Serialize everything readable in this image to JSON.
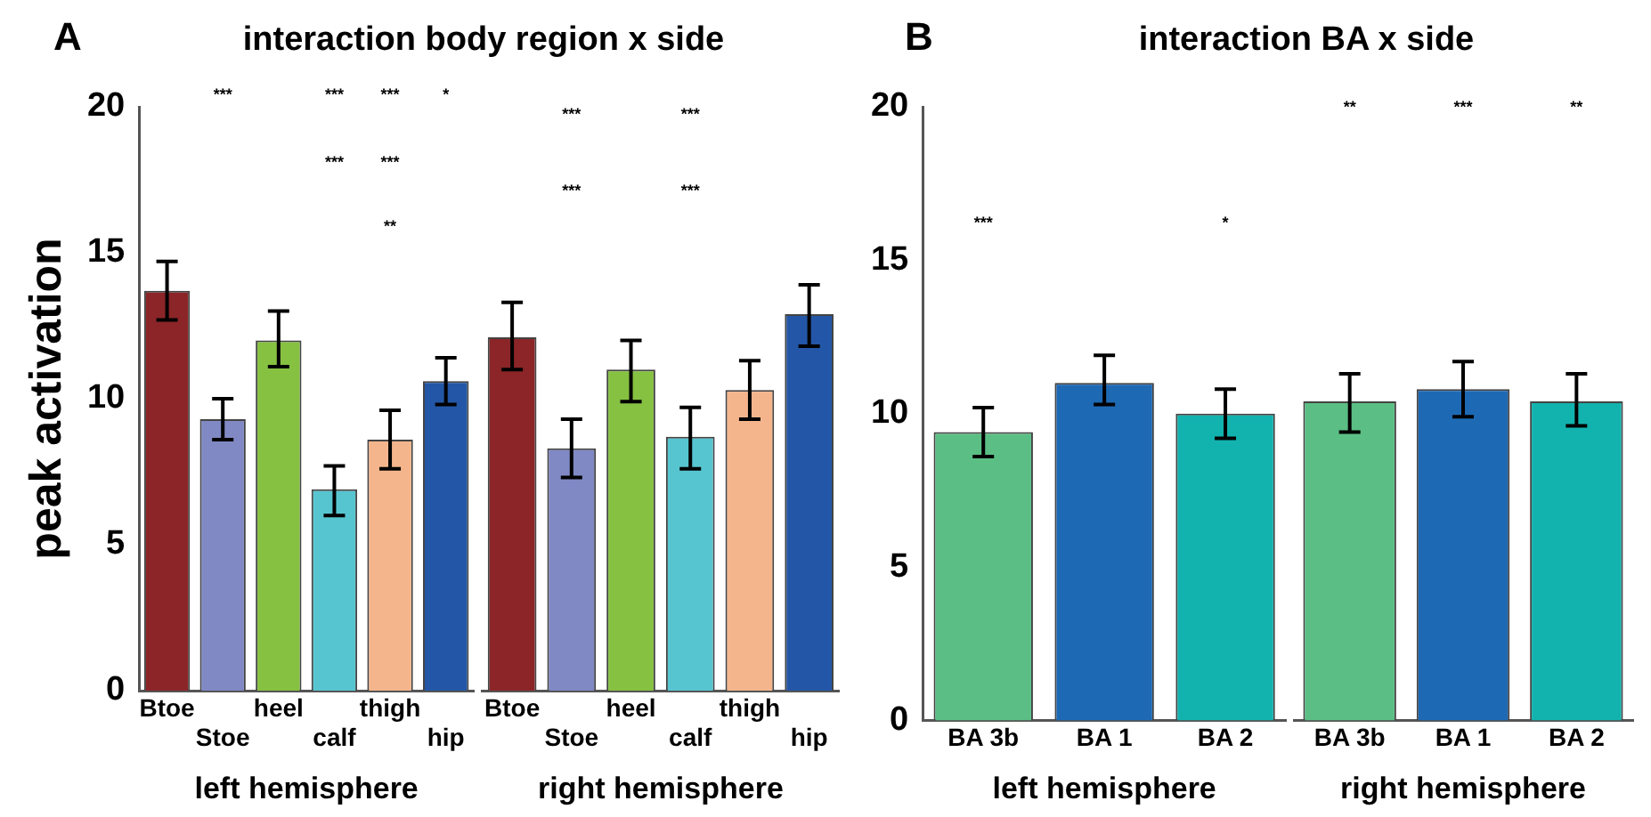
{
  "chart_data": [
    {
      "type": "bar",
      "title": "interaction body region x side",
      "ylabel": "peak activation",
      "xlabel": "left hemisphere",
      "categories": [
        "Btoe",
        "Stoe",
        "heel",
        "calf",
        "thigh",
        "hip"
      ],
      "values": [
        13.7,
        9.3,
        12.0,
        6.9,
        8.6,
        10.6
      ],
      "colors": [
        "#8b2527",
        "#8089c4",
        "#86c141",
        "#57c5d0",
        "#f5b58c",
        "#2356a6"
      ],
      "errors": [
        [
          12.7,
          14.7
        ],
        [
          8.6,
          10.0
        ],
        [
          11.1,
          13.0
        ],
        [
          6.0,
          7.7
        ],
        [
          7.6,
          9.6
        ],
        [
          9.8,
          11.4
        ]
      ],
      "ylim": [
        0,
        20
      ],
      "yticks": [
        0,
        5,
        10,
        15,
        20
      ],
      "annotations": [
        "A",
        "***",
        "***",
        "***",
        "*",
        "***",
        "***",
        "**"
      ]
    },
    {
      "type": "bar",
      "xlabel": "right hemisphere",
      "tick_labels": "x",
      "categories": [
        "Btoe",
        "Stoe",
        "heel",
        "calf",
        "thigh",
        "hip"
      ],
      "values": [
        12.1,
        8.3,
        11.0,
        8.7,
        10.3,
        12.9
      ],
      "colors": [
        "#8b2527",
        "#8089c4",
        "#86c141",
        "#57c5d0",
        "#f5b58c",
        "#2356a6"
      ],
      "errors": [
        [
          11.0,
          13.3
        ],
        [
          7.3,
          9.3
        ],
        [
          9.9,
          12.0
        ],
        [
          7.6,
          9.7
        ],
        [
          9.3,
          11.3
        ],
        [
          11.8,
          13.9
        ]
      ],
      "ylim": [
        0,
        20
      ],
      "yticks": [
        0,
        5,
        10,
        15,
        20
      ],
      "annotations": [
        "***",
        "***",
        "***",
        "***"
      ]
    },
    {
      "type": "bar",
      "title": "interaction BA x side",
      "xlabel": "left hemisphere",
      "categories": [
        "BA 3b",
        "BA 1",
        "BA 2"
      ],
      "values": [
        9.4,
        11.0,
        10.0
      ],
      "colors": [
        "#5bbf85",
        "#1e69b4",
        "#12b3ae"
      ],
      "errors": [
        [
          8.6,
          10.2
        ],
        [
          10.3,
          11.9
        ],
        [
          9.2,
          10.8
        ]
      ],
      "ylim": [
        0,
        20
      ],
      "yticks": [
        0,
        5,
        10,
        15,
        20
      ],
      "annotations": [
        "B",
        "***",
        "*"
      ]
    },
    {
      "type": "bar",
      "xlabel": "right hemisphere",
      "tick_labels": "x",
      "categories": [
        "BA 3b",
        "BA 1",
        "BA 2"
      ],
      "values": [
        10.4,
        10.8,
        10.4
      ],
      "colors": [
        "#5bbf85",
        "#1e69b4",
        "#12b3ae"
      ],
      "errors": [
        [
          9.4,
          11.3
        ],
        [
          9.9,
          11.7
        ],
        [
          9.6,
          11.3
        ]
      ],
      "ylim": [
        0,
        20
      ],
      "yticks": [
        0,
        5,
        10,
        15,
        20
      ],
      "annotations": [
        "**",
        "***",
        "**"
      ]
    }
  ]
}
